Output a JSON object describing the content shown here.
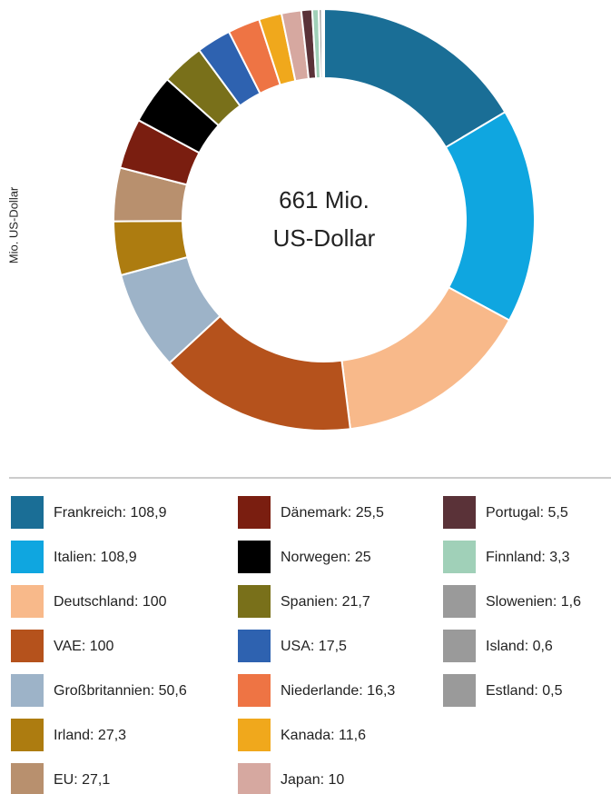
{
  "chart_data": {
    "type": "donut",
    "y_axis_label": "Mio. US-Dollar",
    "center_label": [
      "661 Mio.",
      "US-Dollar"
    ],
    "labels": [
      "Frankreich: 108,9",
      "Italien: 108,9",
      "Deutschland: 100",
      "VAE: 100",
      "Großbritannien: 50,6",
      "Irland: 27,3",
      "EU: 27,1",
      "Dänemark: 25,5",
      "Norwegen: 25",
      "Spanien: 21,7",
      "USA: 17,5",
      "Niederlande: 16,3",
      "Kanada: 11,6",
      "Japan: 10",
      "Portugal: 5,5",
      "Finnland: 3,3",
      "Slowenien: 1,6",
      "Island: 0,6",
      "Estland: 0,5"
    ],
    "values": [
      108.9,
      108.9,
      100,
      100,
      50.6,
      27.3,
      27.1,
      25.5,
      25,
      21.7,
      17.5,
      16.3,
      11.6,
      10,
      5.5,
      3.3,
      1.6,
      0.6,
      0.5
    ],
    "colors": [
      "#1a6e96",
      "#0fa6e0",
      "#f8b98a",
      "#b5521c",
      "#9db3c8",
      "#ad7c10",
      "#b8906e",
      "#7a1e10",
      "#000000",
      "#79701a",
      "#2e62b0",
      "#ee7444",
      "#f0a81c",
      "#d6a8a0",
      "#5a3238",
      "#a0d0b8",
      "#9a9a9a",
      "#9a9a9a",
      "#9a9a9a"
    ]
  }
}
